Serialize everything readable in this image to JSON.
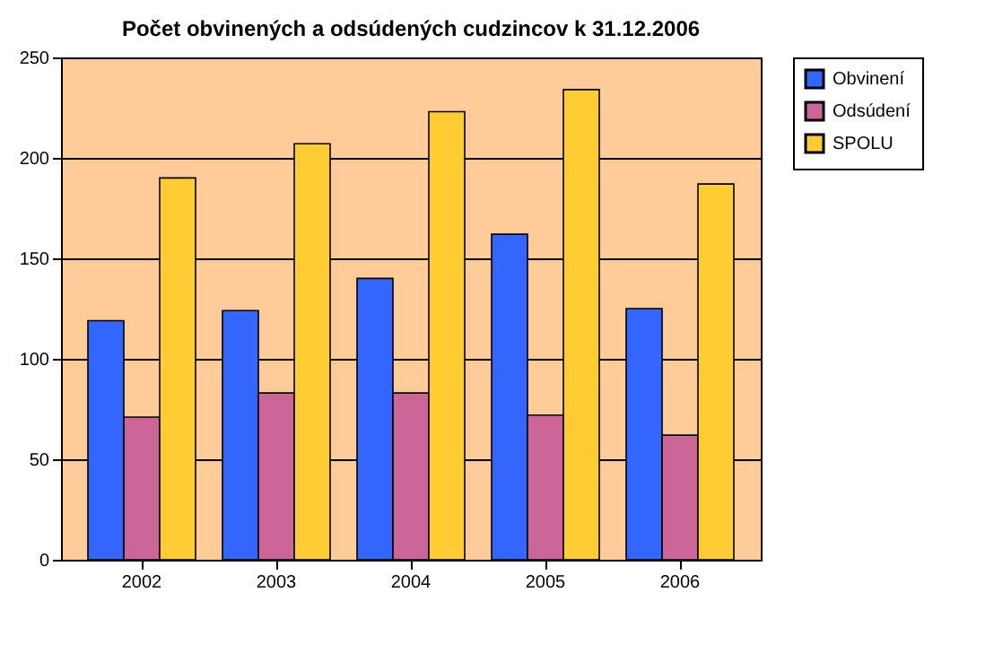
{
  "chart_data": {
    "type": "bar",
    "title": "Počet obvinených a odsúdených cudzincov k 31.12.2006",
    "categories": [
      "2002",
      "2003",
      "2004",
      "2005",
      "2006"
    ],
    "series": [
      {
        "name": "Obvinení",
        "color": "#3366ff",
        "values": [
          119,
          124,
          140,
          162,
          125
        ]
      },
      {
        "name": "Odsúdení",
        "color": "#cc6699",
        "values": [
          71,
          83,
          83,
          72,
          62
        ]
      },
      {
        "name": "SPOLU",
        "color": "#ffcc33",
        "values": [
          190,
          207,
          223,
          234,
          187
        ]
      }
    ],
    "ylim": [
      0,
      250
    ],
    "yticks": [
      0,
      50,
      100,
      150,
      200,
      250
    ],
    "grid": "y",
    "legend": "right"
  }
}
